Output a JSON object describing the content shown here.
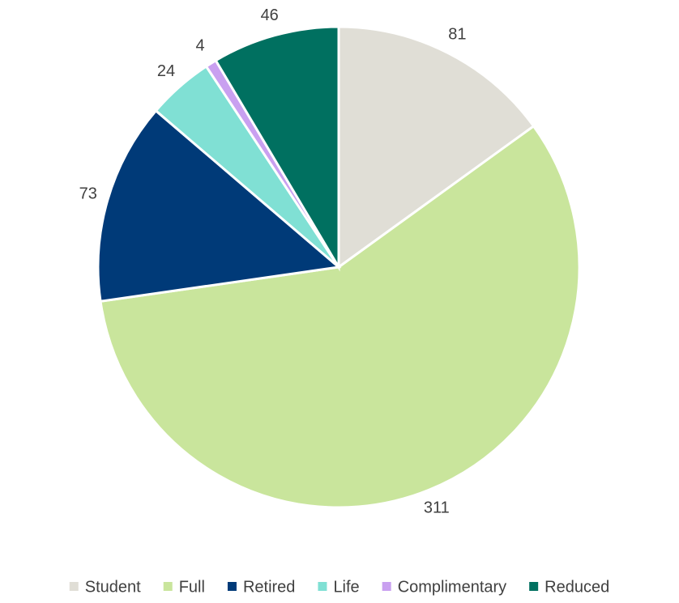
{
  "chart_data": {
    "type": "pie",
    "categories": [
      "Student",
      "Full",
      "Retired",
      "Life",
      "Complimentary",
      "Reduced"
    ],
    "values": [
      81,
      311,
      73,
      24,
      4,
      46
    ],
    "colors": [
      "#e0ded6",
      "#c9e59c",
      "#003a78",
      "#80e0d4",
      "#c9a0f0",
      "#007060"
    ],
    "legend": "bottom"
  }
}
